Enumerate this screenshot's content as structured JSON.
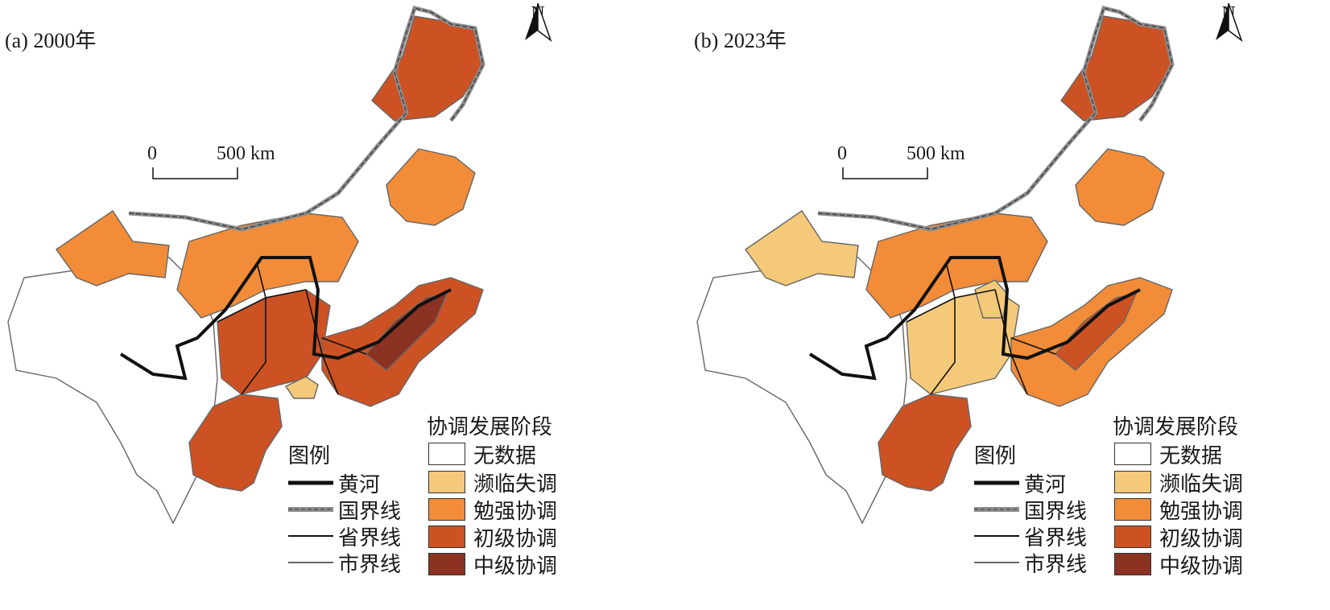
{
  "panels": [
    {
      "title": "(a) 2000年",
      "north": "N",
      "scale": {
        "start": "0",
        "end": "500 km"
      },
      "fill_by_zone": [
        "#ffffff",
        "#f28c38",
        "#cc5224",
        "#f28c38",
        "#cc5224",
        "#cc5224",
        "#8b3222",
        "#cc5224",
        "#f5c97a"
      ]
    },
    {
      "title": "(b) 2023年",
      "north": "N",
      "scale": {
        "start": "0",
        "end": "500 km"
      },
      "fill_by_zone": [
        "#ffffff",
        "#f5c97a",
        "#cc5224",
        "#f28c38",
        "#f5c97a",
        "#f28c38",
        "#cc5224",
        "#cc5224",
        "#f5c97a"
      ]
    }
  ],
  "legend": {
    "title": "图例",
    "items": [
      {
        "label": "黄河",
        "symbol": "river"
      },
      {
        "label": "国界线",
        "symbol": "national-border"
      },
      {
        "label": "省界线",
        "symbol": "provincial-border"
      },
      {
        "label": "市界线",
        "symbol": "city-border"
      }
    ]
  },
  "classes": {
    "title": "协调发展阶段",
    "items": [
      {
        "label": "无数据",
        "color": "#ffffff"
      },
      {
        "label": "濒临失调",
        "color": "#f5c97a"
      },
      {
        "label": "勉强协调",
        "color": "#f28c38"
      },
      {
        "label": "初级协调",
        "color": "#cc5224"
      },
      {
        "label": "中级协调",
        "color": "#8b3222"
      }
    ]
  }
}
